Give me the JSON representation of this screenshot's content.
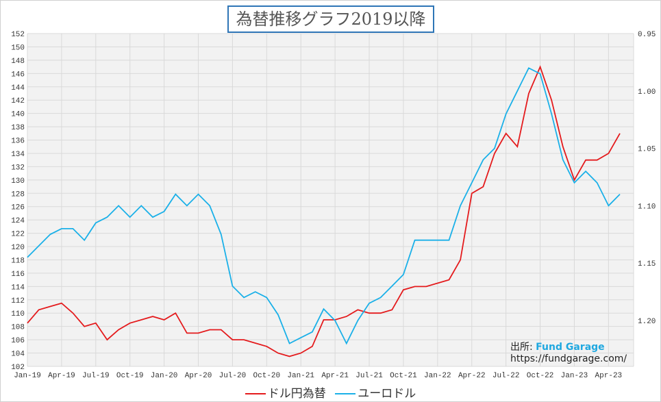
{
  "chart_data": {
    "type": "line",
    "title": "為替推移グラフ2019以降",
    "x_tick_labels": [
      "Jan-19",
      "Apr-19",
      "Jul-19",
      "Oct-19",
      "Jan-20",
      "Apr-20",
      "Jul-20",
      "Oct-20",
      "Jan-21",
      "Apr-21",
      "Jul-21",
      "Oct-21",
      "Jan-22",
      "Apr-22",
      "Jul-22",
      "Oct-22",
      "Jan-23",
      "Apr-23"
    ],
    "x_months": 53,
    "x_start": "2019-01",
    "y_left": {
      "min": 102,
      "max": 152,
      "step": 2
    },
    "y_right": {
      "min": 0.95,
      "max": 1.24,
      "ticks": [
        "0.95",
        "1.00",
        "1.05",
        "1.10",
        "1.15",
        "1.20"
      ],
      "inverted": true
    },
    "grid": true,
    "legend_position": "bottom",
    "series": [
      {
        "name": "ドル円為替",
        "axis": "left",
        "color": "#e41a1c",
        "values": [
          108.5,
          110.5,
          111,
          111.5,
          110,
          108,
          108.5,
          106,
          107.5,
          108.5,
          109,
          109.5,
          109,
          110,
          107,
          107,
          107.5,
          107.5,
          106,
          106,
          105.5,
          105,
          104,
          103.5,
          104,
          105,
          109,
          109,
          109.5,
          110.5,
          110,
          110,
          110.5,
          113.5,
          114,
          114,
          114.5,
          115,
          118,
          128,
          129,
          134,
          137,
          135,
          143,
          147,
          142,
          135,
          130,
          133,
          133,
          134,
          137
        ]
      },
      {
        "name": "ユーロドル",
        "axis": "right",
        "color": "#1ab0e8",
        "values": [
          1.145,
          1.135,
          1.125,
          1.12,
          1.12,
          1.13,
          1.115,
          1.11,
          1.1,
          1.11,
          1.1,
          1.11,
          1.105,
          1.09,
          1.1,
          1.09,
          1.1,
          1.125,
          1.17,
          1.18,
          1.175,
          1.18,
          1.195,
          1.22,
          1.215,
          1.21,
          1.19,
          1.2,
          1.22,
          1.2,
          1.185,
          1.18,
          1.17,
          1.16,
          1.13,
          1.13,
          1.13,
          1.13,
          1.1,
          1.08,
          1.06,
          1.05,
          1.02,
          1.0,
          0.98,
          0.985,
          1.02,
          1.06,
          1.08,
          1.07,
          1.08,
          1.1,
          1.09
        ]
      }
    ]
  },
  "source": {
    "label": "出所:",
    "name": "Fund Garage",
    "url": "https://fundgarage.com/"
  }
}
